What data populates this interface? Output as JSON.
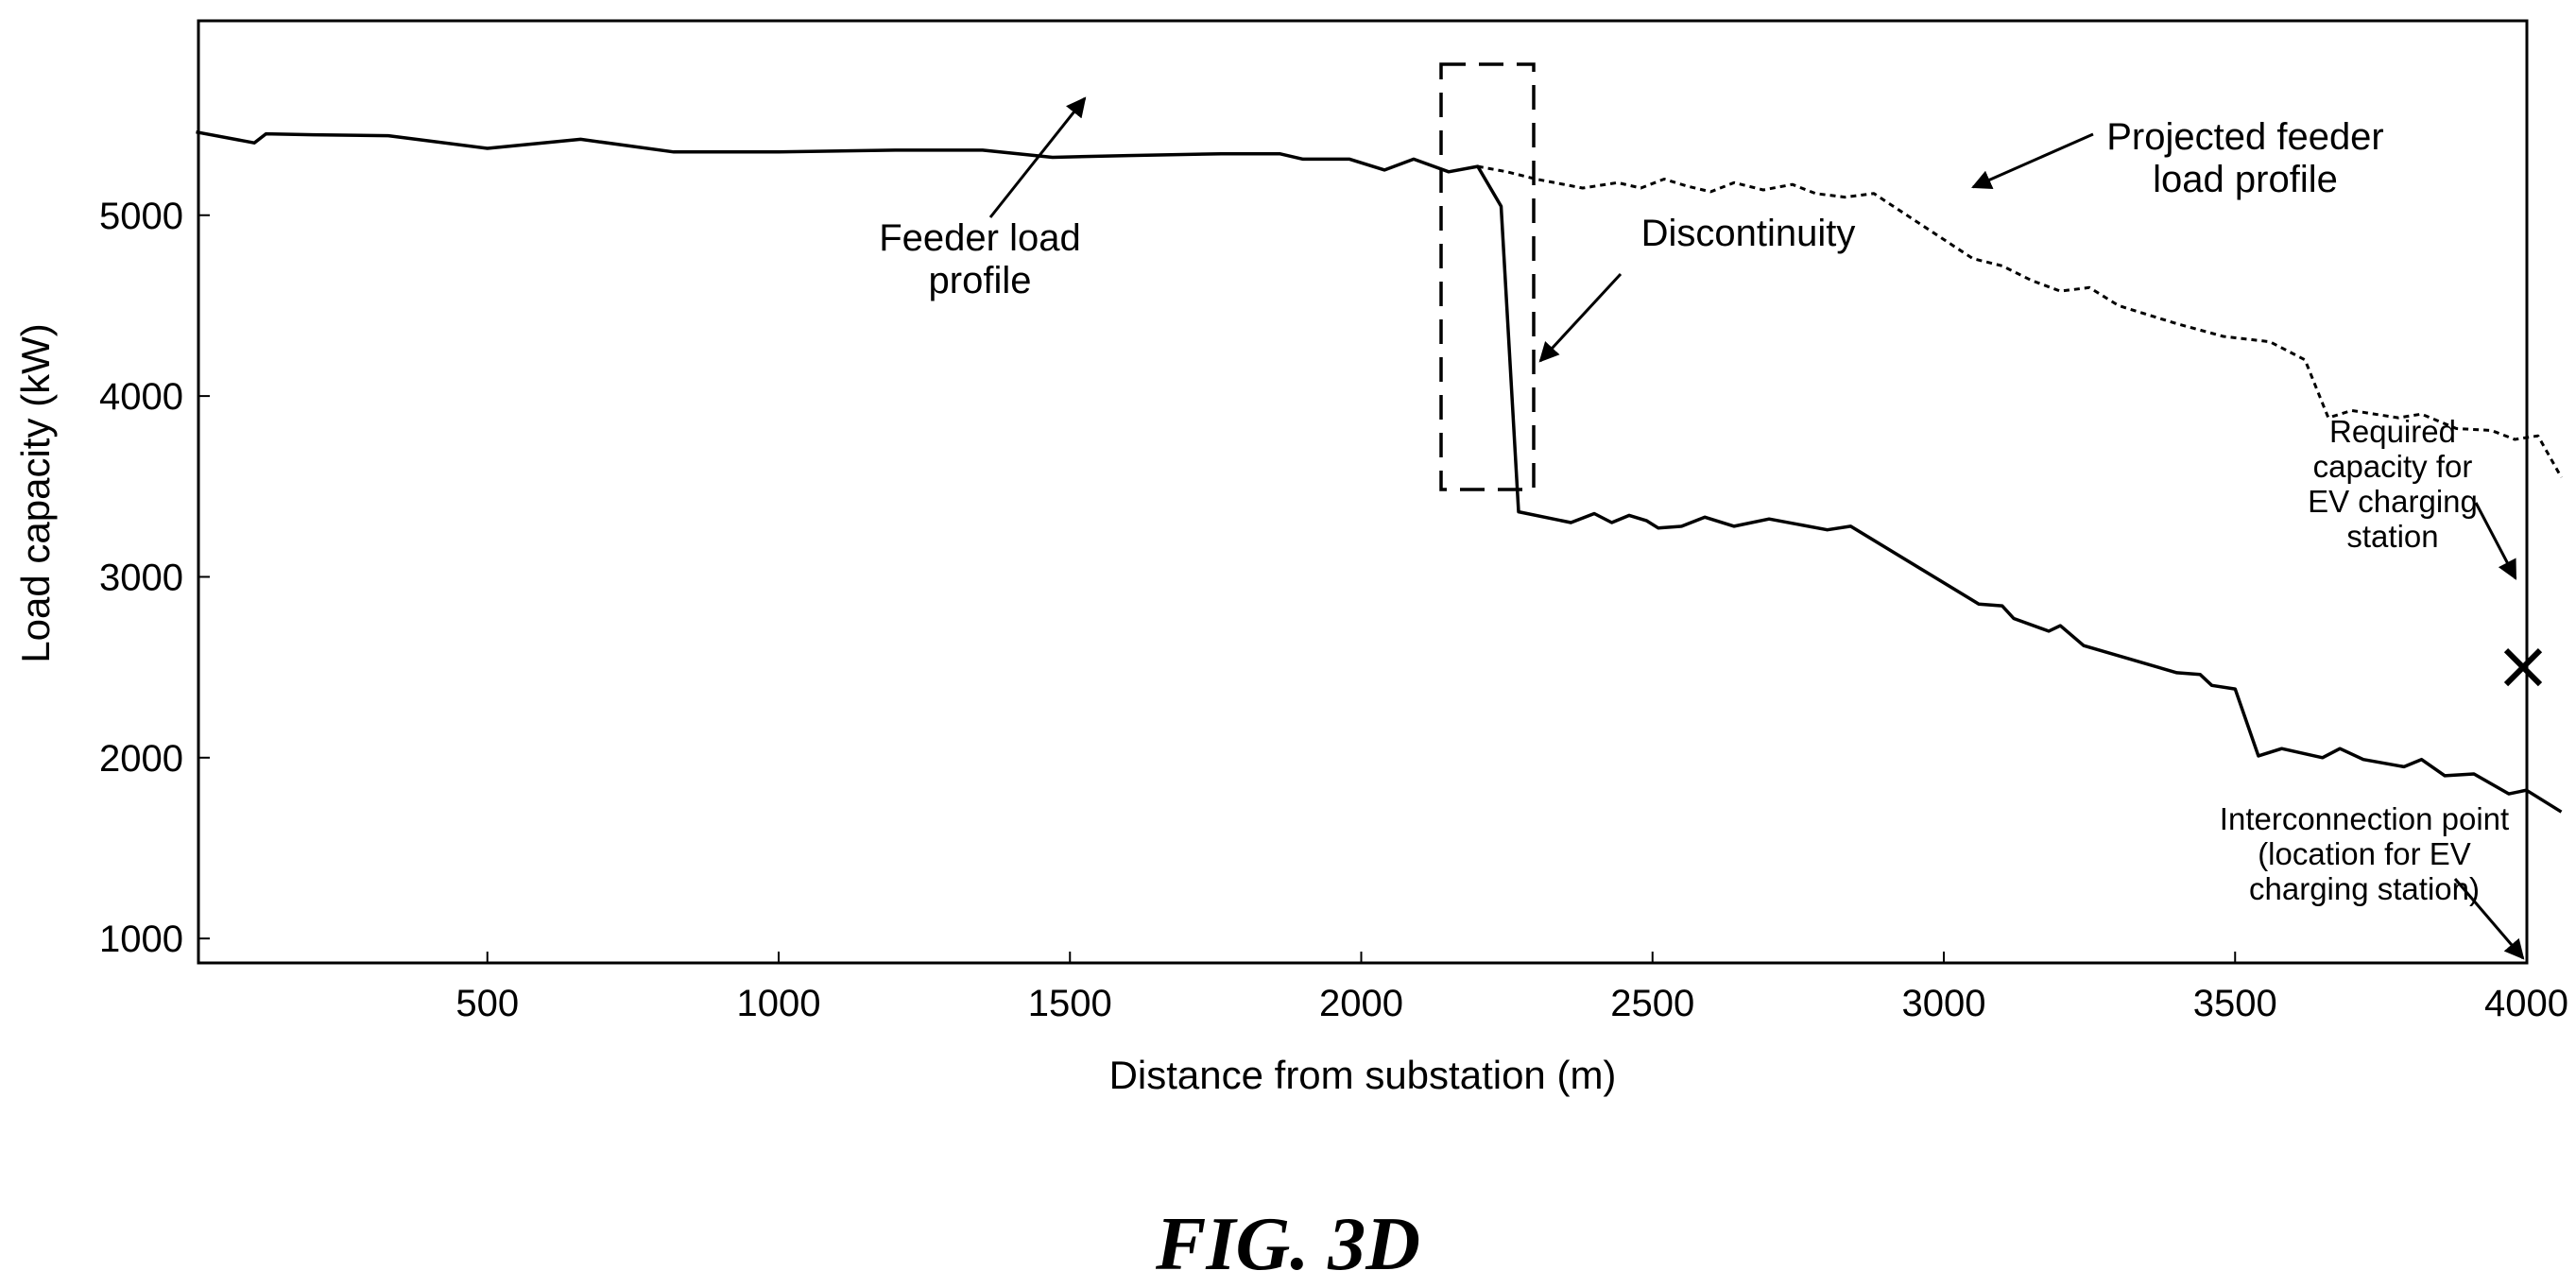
{
  "chart_data": {
    "type": "line",
    "xlabel": "Distance from substation (m)",
    "ylabel": "Load capacity (kW)",
    "xlim": [
      0,
      4000
    ],
    "ylim": [
      500,
      5700
    ],
    "x_ticks": [
      500,
      1000,
      1500,
      2000,
      2500,
      3000,
      3500,
      4000
    ],
    "y_ticks": [
      1000,
      2000,
      3000,
      4000,
      5000
    ],
    "grid": false,
    "series": [
      {
        "style": "solid",
        "points": [
          [
            0,
            5460
          ],
          [
            100,
            5400
          ],
          [
            120,
            5450
          ],
          [
            200,
            5445
          ],
          [
            330,
            5440
          ],
          [
            500,
            5370
          ],
          [
            660,
            5420
          ],
          [
            820,
            5350
          ],
          [
            1000,
            5350
          ],
          [
            1200,
            5360
          ],
          [
            1350,
            5360
          ],
          [
            1470,
            5320
          ],
          [
            1600,
            5330
          ],
          [
            1760,
            5340
          ],
          [
            1860,
            5340
          ],
          [
            1900,
            5310
          ],
          [
            1980,
            5310
          ],
          [
            2040,
            5250
          ],
          [
            2090,
            5310
          ],
          [
            2150,
            5240
          ],
          [
            2200,
            5270
          ],
          [
            2240,
            5050
          ],
          [
            2270,
            3360
          ],
          [
            2360,
            3300
          ],
          [
            2400,
            3350
          ],
          [
            2430,
            3300
          ],
          [
            2460,
            3340
          ],
          [
            2490,
            3310
          ],
          [
            2510,
            3270
          ],
          [
            2550,
            3280
          ],
          [
            2590,
            3330
          ],
          [
            2640,
            3280
          ],
          [
            2700,
            3320
          ],
          [
            2800,
            3260
          ],
          [
            2840,
            3280
          ],
          [
            3060,
            2850
          ],
          [
            3100,
            2840
          ],
          [
            3120,
            2770
          ],
          [
            3180,
            2700
          ],
          [
            3200,
            2730
          ],
          [
            3240,
            2620
          ],
          [
            3400,
            2470
          ],
          [
            3440,
            2460
          ],
          [
            3460,
            2400
          ],
          [
            3500,
            2380
          ],
          [
            3540,
            2010
          ],
          [
            3580,
            2050
          ],
          [
            3650,
            2000
          ],
          [
            3680,
            2050
          ],
          [
            3720,
            1990
          ],
          [
            3790,
            1950
          ],
          [
            3820,
            1990
          ],
          [
            3860,
            1900
          ],
          [
            3910,
            1910
          ],
          [
            3970,
            1800
          ],
          [
            4000,
            1820
          ],
          [
            4060,
            1700
          ]
        ]
      },
      {
        "style": "dashed",
        "points": [
          [
            2200,
            5270
          ],
          [
            2250,
            5240
          ],
          [
            2300,
            5200
          ],
          [
            2380,
            5150
          ],
          [
            2440,
            5180
          ],
          [
            2480,
            5150
          ],
          [
            2520,
            5200
          ],
          [
            2560,
            5160
          ],
          [
            2600,
            5130
          ],
          [
            2640,
            5180
          ],
          [
            2690,
            5140
          ],
          [
            2740,
            5170
          ],
          [
            2780,
            5120
          ],
          [
            2830,
            5100
          ],
          [
            2880,
            5120
          ],
          [
            3050,
            4760
          ],
          [
            3100,
            4720
          ],
          [
            3150,
            4640
          ],
          [
            3200,
            4580
          ],
          [
            3250,
            4600
          ],
          [
            3300,
            4500
          ],
          [
            3400,
            4400
          ],
          [
            3480,
            4330
          ],
          [
            3560,
            4300
          ],
          [
            3620,
            4200
          ],
          [
            3660,
            3880
          ],
          [
            3700,
            3920
          ],
          [
            3780,
            3880
          ],
          [
            3820,
            3900
          ],
          [
            3880,
            3820
          ],
          [
            3940,
            3810
          ],
          [
            3980,
            3760
          ],
          [
            4020,
            3780
          ],
          [
            4060,
            3550
          ]
        ]
      }
    ],
    "markers": [
      {
        "symbol": "×",
        "x": 4000,
        "y": 2500
      }
    ]
  },
  "annotations": {
    "feeder_line1": "Feeder load",
    "feeder_line2": "profile",
    "discontinuity": "Discontinuity",
    "projected_line1": "Projected feeder",
    "projected_line2": "load profile",
    "required_line1": "Required",
    "required_line2": "capacity for",
    "required_line3": "EV charging",
    "required_line4": "station",
    "interconnect_line1": "Interconnection point",
    "interconnect_line2": "(location for EV",
    "interconnect_line3": "charging station)"
  },
  "figure_caption": "FIG. 3D",
  "colors": {
    "line": "#000000",
    "background": "#ffffff"
  }
}
